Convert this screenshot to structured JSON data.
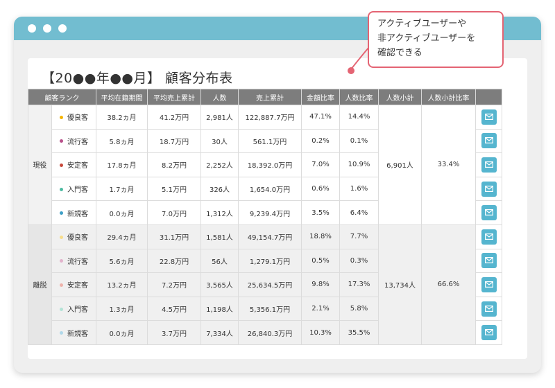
{
  "window": {
    "accent_color": "#72bdd0",
    "control_dots": [
      "window-dot",
      "window-dot",
      "window-dot"
    ]
  },
  "page": {
    "title": "【20●●年●●月】 顧客分布表"
  },
  "callout": {
    "lines": [
      "アクティブユーザーや",
      "非アクティブユーザーを",
      "確認できる"
    ],
    "border_color": "#e46473"
  },
  "table": {
    "headers": [
      "顧客ランク",
      "平均在籍期間",
      "平均売上累計",
      "人数",
      "売上累計",
      "金額比率",
      "人数比率",
      "人数小計",
      "人数小計比率",
      ""
    ],
    "groups": [
      {
        "name": "現役",
        "subtotal": "6,901人",
        "subtotal_ratio": "33.4%",
        "rows": [
          {
            "rank": "優良客",
            "dot_color": "#f5b400",
            "avg_tenure": "38.2ヵ月",
            "avg_sales": "41.2万円",
            "count": "2,981人",
            "sales_total": "122,887.7万円",
            "amount_ratio": "47.1%",
            "count_ratio": "14.4%"
          },
          {
            "rank": "流行客",
            "dot_color": "#b8508a",
            "avg_tenure": "5.8ヵ月",
            "avg_sales": "18.7万円",
            "count": "30人",
            "sales_total": "561.1万円",
            "amount_ratio": "0.2%",
            "count_ratio": "0.1%"
          },
          {
            "rank": "安定客",
            "dot_color": "#c8483a",
            "avg_tenure": "17.8ヵ月",
            "avg_sales": "8.2万円",
            "count": "2,252人",
            "sales_total": "18,392.0万円",
            "amount_ratio": "7.0%",
            "count_ratio": "10.9%"
          },
          {
            "rank": "入門客",
            "dot_color": "#4dbba2",
            "avg_tenure": "1.7ヵ月",
            "avg_sales": "5.1万円",
            "count": "326人",
            "sales_total": "1,654.0万円",
            "amount_ratio": "0.6%",
            "count_ratio": "1.6%"
          },
          {
            "rank": "新規客",
            "dot_color": "#3d9fc6",
            "avg_tenure": "0.0ヵ月",
            "avg_sales": "7.0万円",
            "count": "1,312人",
            "sales_total": "9,239.4万円",
            "amount_ratio": "3.5%",
            "count_ratio": "6.4%"
          }
        ]
      },
      {
        "name": "離脱",
        "subtotal": "13,734人",
        "subtotal_ratio": "66.6%",
        "rows": [
          {
            "rank": "優良客",
            "dot_color": "#f8dd8a",
            "avg_tenure": "29.4ヵ月",
            "avg_sales": "31.1万円",
            "count": "1,581人",
            "sales_total": "49,154.7万円",
            "amount_ratio": "18.8%",
            "count_ratio": "7.7%"
          },
          {
            "rank": "流行客",
            "dot_color": "#e2b3cc",
            "avg_tenure": "5.6ヵ月",
            "avg_sales": "22.8万円",
            "count": "56人",
            "sales_total": "1,279.1万円",
            "amount_ratio": "0.5%",
            "count_ratio": "0.3%"
          },
          {
            "rank": "安定客",
            "dot_color": "#eeb2aa",
            "avg_tenure": "13.2ヵ月",
            "avg_sales": "7.2万円",
            "count": "3,565人",
            "sales_total": "25,634.5万円",
            "amount_ratio": "9.8%",
            "count_ratio": "17.3%"
          },
          {
            "rank": "入門客",
            "dot_color": "#b2e3d6",
            "avg_tenure": "1.3ヵ月",
            "avg_sales": "4.5万円",
            "count": "1,198人",
            "sales_total": "5,356.1万円",
            "amount_ratio": "2.1%",
            "count_ratio": "5.8%"
          },
          {
            "rank": "新規客",
            "dot_color": "#b0d8ea",
            "avg_tenure": "0.0ヵ月",
            "avg_sales": "3.7万円",
            "count": "7,334人",
            "sales_total": "26,840.3万円",
            "amount_ratio": "10.3%",
            "count_ratio": "35.5%"
          }
        ]
      }
    ],
    "action_icon": "mail-icon",
    "action_color": "#55b5cf"
  }
}
